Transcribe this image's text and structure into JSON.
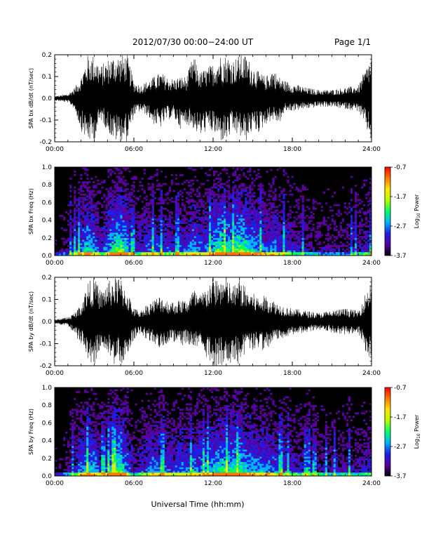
{
  "header": {
    "title": "2012/07/30  00:00−24:00 UT",
    "page_label": "Page 1/1"
  },
  "x_axis_label": "Universal Time (hh:mm)",
  "time_ticks": [
    "00:00",
    "06:00",
    "12:00",
    "18:00",
    "24:00"
  ],
  "colors": {
    "trace": "#000000",
    "spectrogram_background": "#000000",
    "colorbar": [
      "#000000",
      "#5a00a0",
      "#1e1ee6",
      "#00b4ff",
      "#00ff64",
      "#b4ff00",
      "#ffe600",
      "#ff7800",
      "#ff0000"
    ]
  },
  "chart_data": [
    {
      "type": "line",
      "name": "bx-waveform",
      "ylabel": "SPA bx dB/dt (nT/sec)",
      "xlim": [
        0,
        24
      ],
      "ylim": [
        -0.2,
        0.2
      ],
      "yticks": [
        "-0.2",
        "-0.1",
        "0.0",
        "0.1",
        "0.2"
      ],
      "x_unit": "hours UT",
      "envelope_x": [
        0,
        1,
        1.5,
        2,
        2.5,
        3,
        3.5,
        4,
        4.5,
        5,
        5.5,
        6,
        6.5,
        7,
        7.5,
        8,
        8.5,
        9,
        9.5,
        10,
        10.5,
        11,
        11.5,
        12,
        12.5,
        13,
        13.5,
        14,
        14.5,
        15,
        15.5,
        16,
        16.5,
        17,
        17.5,
        18,
        19,
        20,
        21,
        22,
        23,
        24
      ],
      "envelope_upper": [
        0.01,
        0.02,
        0.05,
        0.1,
        0.2,
        0.2,
        0.15,
        0.18,
        0.2,
        0.2,
        0.2,
        0.08,
        0.06,
        0.08,
        0.1,
        0.12,
        0.1,
        0.09,
        0.1,
        0.1,
        0.2,
        0.12,
        0.14,
        0.16,
        0.2,
        0.2,
        0.18,
        0.2,
        0.2,
        0.15,
        0.12,
        0.1,
        0.14,
        0.1,
        0.08,
        0.07,
        0.05,
        0.04,
        0.04,
        0.05,
        0.06,
        0.2
      ],
      "envelope_lower": [
        -0.01,
        -0.02,
        -0.05,
        -0.15,
        -0.2,
        -0.2,
        -0.1,
        -0.15,
        -0.2,
        -0.2,
        -0.2,
        -0.08,
        -0.06,
        -0.08,
        -0.12,
        -0.14,
        -0.1,
        -0.09,
        -0.14,
        -0.12,
        -0.14,
        -0.18,
        -0.15,
        -0.16,
        -0.2,
        -0.2,
        -0.16,
        -0.18,
        -0.2,
        -0.15,
        -0.16,
        -0.12,
        -0.1,
        -0.12,
        -0.06,
        -0.06,
        -0.05,
        -0.04,
        -0.04,
        -0.05,
        -0.06,
        -0.2
      ]
    },
    {
      "type": "heatmap",
      "name": "bx-spectrogram",
      "ylabel": "SPA bx Freq (Hz)",
      "xlim": [
        0,
        24
      ],
      "ylim": [
        0.0,
        1.0
      ],
      "yticks": [
        "0.0",
        "0.2",
        "0.4",
        "0.6",
        "0.8",
        "1.0"
      ],
      "colorbar": {
        "label": "Log10 Power",
        "label_base": "Log",
        "label_sub": "10",
        "label_rest": " Power",
        "range": [
          -3.7,
          -0.7
        ],
        "ticks": [
          "-0.7",
          "-1.7",
          "-2.7",
          "-3.7"
        ]
      },
      "activity_x": [
        0,
        1,
        1.5,
        2,
        2.5,
        3,
        3.5,
        4,
        4.5,
        5,
        5.5,
        6,
        6.5,
        7,
        7.5,
        8,
        8.5,
        9,
        9.5,
        10,
        10.5,
        11,
        11.5,
        12,
        12.5,
        13,
        13.5,
        14,
        14.5,
        15,
        15.5,
        16,
        16.5,
        17,
        17.5,
        18,
        19,
        20,
        21,
        22,
        23,
        24
      ],
      "activity": [
        0.1,
        0.2,
        0.35,
        0.55,
        0.75,
        0.6,
        0.35,
        0.55,
        0.85,
        0.95,
        0.7,
        0.35,
        0.4,
        0.5,
        0.55,
        0.45,
        0.45,
        0.4,
        0.5,
        0.45,
        0.65,
        0.5,
        0.55,
        0.7,
        0.9,
        0.8,
        0.75,
        0.9,
        0.8,
        0.7,
        0.6,
        0.55,
        0.6,
        0.5,
        0.45,
        0.4,
        0.3,
        0.25,
        0.25,
        0.25,
        0.3,
        0.4
      ]
    },
    {
      "type": "line",
      "name": "by-waveform",
      "ylabel": "SPA by dB/dt (nT/sec)",
      "xlim": [
        0,
        24
      ],
      "ylim": [
        -0.2,
        0.2
      ],
      "yticks": [
        "-0.2",
        "-0.1",
        "0.0",
        "0.1",
        "0.2"
      ],
      "x_unit": "hours UT",
      "envelope_x": [
        0,
        1,
        1.5,
        2,
        2.5,
        3,
        3.5,
        4,
        4.5,
        5,
        5.5,
        6,
        6.5,
        7,
        7.5,
        8,
        8.5,
        9,
        9.5,
        10,
        10.5,
        11,
        11.5,
        12,
        12.5,
        13,
        13.5,
        14,
        14.5,
        15,
        15.5,
        16,
        16.5,
        17,
        17.5,
        18,
        19,
        20,
        21,
        22,
        23,
        24
      ],
      "envelope_upper": [
        0.01,
        0.02,
        0.04,
        0.08,
        0.18,
        0.2,
        0.14,
        0.18,
        0.2,
        0.2,
        0.14,
        0.06,
        0.05,
        0.08,
        0.1,
        0.12,
        0.1,
        0.09,
        0.1,
        0.1,
        0.15,
        0.12,
        0.16,
        0.2,
        0.2,
        0.2,
        0.16,
        0.2,
        0.15,
        0.13,
        0.11,
        0.12,
        0.1,
        0.08,
        0.07,
        0.06,
        0.05,
        0.04,
        0.05,
        0.06,
        0.05,
        0.2
      ],
      "envelope_lower": [
        -0.01,
        -0.02,
        -0.06,
        -0.1,
        -0.2,
        -0.2,
        -0.12,
        -0.14,
        -0.2,
        -0.2,
        -0.16,
        -0.08,
        -0.06,
        -0.08,
        -0.1,
        -0.12,
        -0.1,
        -0.09,
        -0.12,
        -0.1,
        -0.12,
        -0.14,
        -0.16,
        -0.2,
        -0.2,
        -0.2,
        -0.18,
        -0.2,
        -0.14,
        -0.13,
        -0.12,
        -0.14,
        -0.1,
        -0.08,
        -0.07,
        -0.06,
        -0.05,
        -0.04,
        -0.05,
        -0.06,
        -0.05,
        -0.2
      ]
    },
    {
      "type": "heatmap",
      "name": "by-spectrogram",
      "ylabel": "SPA by Freq (Hz)",
      "xlim": [
        0,
        24
      ],
      "ylim": [
        0.0,
        1.0
      ],
      "yticks": [
        "0.0",
        "0.2",
        "0.4",
        "0.6",
        "0.8",
        "1.0"
      ],
      "colorbar": {
        "label": "Log10 Power",
        "label_base": "Log",
        "label_sub": "10",
        "label_rest": " Power",
        "range": [
          -3.7,
          -0.7
        ],
        "ticks": [
          "-0.7",
          "-1.7",
          "-2.7",
          "-3.7"
        ]
      },
      "activity_x": [
        0,
        1,
        1.5,
        2,
        2.5,
        3,
        3.5,
        4,
        4.5,
        5,
        5.5,
        6,
        6.5,
        7,
        7.5,
        8,
        8.5,
        9,
        9.5,
        10,
        10.5,
        11,
        11.5,
        12,
        12.5,
        13,
        13.5,
        14,
        14.5,
        15,
        15.5,
        16,
        16.5,
        17,
        17.5,
        18,
        19,
        20,
        21,
        22,
        23,
        24
      ],
      "activity": [
        0.1,
        0.2,
        0.35,
        0.6,
        0.75,
        0.7,
        0.4,
        0.55,
        0.85,
        0.9,
        0.6,
        0.3,
        0.35,
        0.5,
        0.6,
        0.5,
        0.55,
        0.45,
        0.55,
        0.5,
        0.6,
        0.55,
        0.6,
        0.7,
        0.75,
        0.8,
        0.75,
        0.85,
        0.7,
        0.65,
        0.6,
        0.6,
        0.55,
        0.5,
        0.45,
        0.4,
        0.35,
        0.3,
        0.3,
        0.3,
        0.3,
        0.4
      ]
    }
  ]
}
